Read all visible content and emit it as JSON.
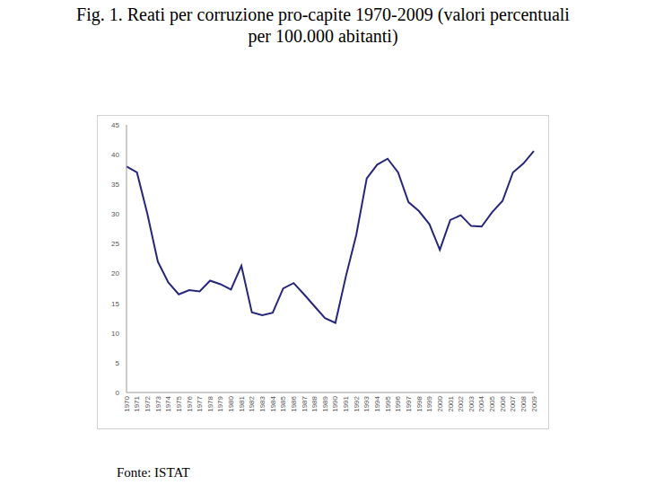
{
  "chart_data": {
    "type": "line",
    "title": "Fig. 1. Reati per corruzione pro-capite 1970-2009 (valori percentuali per 100.000 abitanti)",
    "source": "Fonte: ISTAT",
    "categories": [
      "1970",
      "1971",
      "1972",
      "1973",
      "1974",
      "1975",
      "1976",
      "1977",
      "1978",
      "1979",
      "1980",
      "1981",
      "1982",
      "1983",
      "1984",
      "1985",
      "1986",
      "1987",
      "1988",
      "1989",
      "1990",
      "1991",
      "1992",
      "1993",
      "1994",
      "1995",
      "1996",
      "1997",
      "1998",
      "1999",
      "2000",
      "2001",
      "2002",
      "2003",
      "2004",
      "2005",
      "2006",
      "2007",
      "2008",
      "2009"
    ],
    "values": [
      38,
      37,
      30,
      22,
      18.5,
      16.5,
      17.2,
      17,
      18.8,
      18.2,
      17.3,
      21.3,
      13.5,
      13,
      13.4,
      17.5,
      18.4,
      16.5,
      14.5,
      12.5,
      11.7,
      19.5,
      26.5,
      36,
      38.3,
      39.3,
      37,
      32,
      30.5,
      28.3,
      24,
      29,
      29.8,
      28,
      27.9,
      30.3,
      32.2,
      37,
      38.5,
      40.6
    ],
    "color": "#26267a",
    "ylim": [
      0,
      45
    ],
    "yticks": [
      0,
      5,
      10,
      15,
      20,
      25,
      30,
      35,
      40,
      45
    ],
    "grid": false
  }
}
